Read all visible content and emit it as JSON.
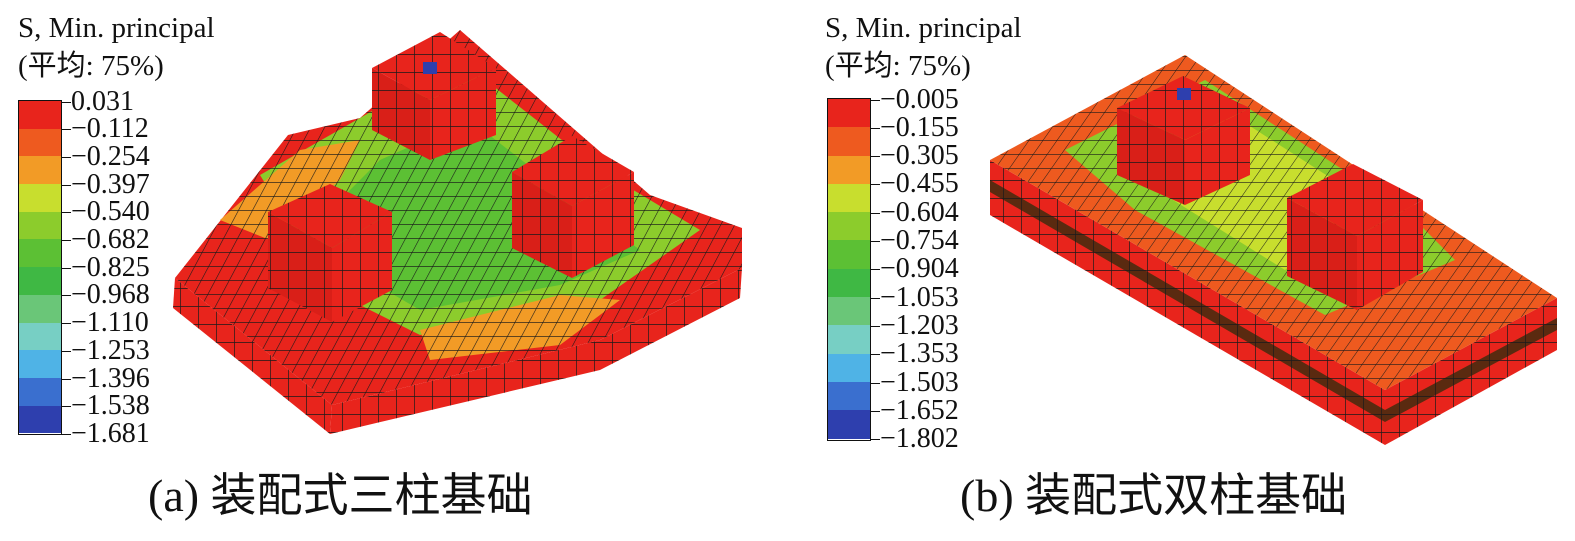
{
  "panels": [
    {
      "legend_title": "S, Min. principal",
      "legend_subtitle": "(平均: 75%)",
      "legend_values": [
        "0.031",
        "−0.112",
        "−0.254",
        "−0.397",
        "−0.540",
        "−0.682",
        "−0.825",
        "−0.968",
        "−1.110",
        "−1.253",
        "−1.396",
        "−1.538",
        "−1.681"
      ],
      "caption": "(a) 装配式三柱基础"
    },
    {
      "legend_title": "S, Min. principal",
      "legend_subtitle": "(平均: 75%)",
      "legend_values": [
        "−0.005",
        "−0.155",
        "−0.305",
        "−0.455",
        "−0.604",
        "−0.754",
        "−0.904",
        "−1.053",
        "−1.203",
        "−1.353",
        "−1.503",
        "−1.652",
        "−1.802"
      ],
      "caption": "(b) 装配式双柱基础"
    }
  ],
  "legend_colors": [
    "#e8241c",
    "#ee5a1f",
    "#f29b26",
    "#c8de2e",
    "#8ccc2c",
    "#5cc034",
    "#3fb844",
    "#6ac678",
    "#77cfc4",
    "#4fb3e6",
    "#3a6fcf",
    "#2e3fae"
  ]
}
